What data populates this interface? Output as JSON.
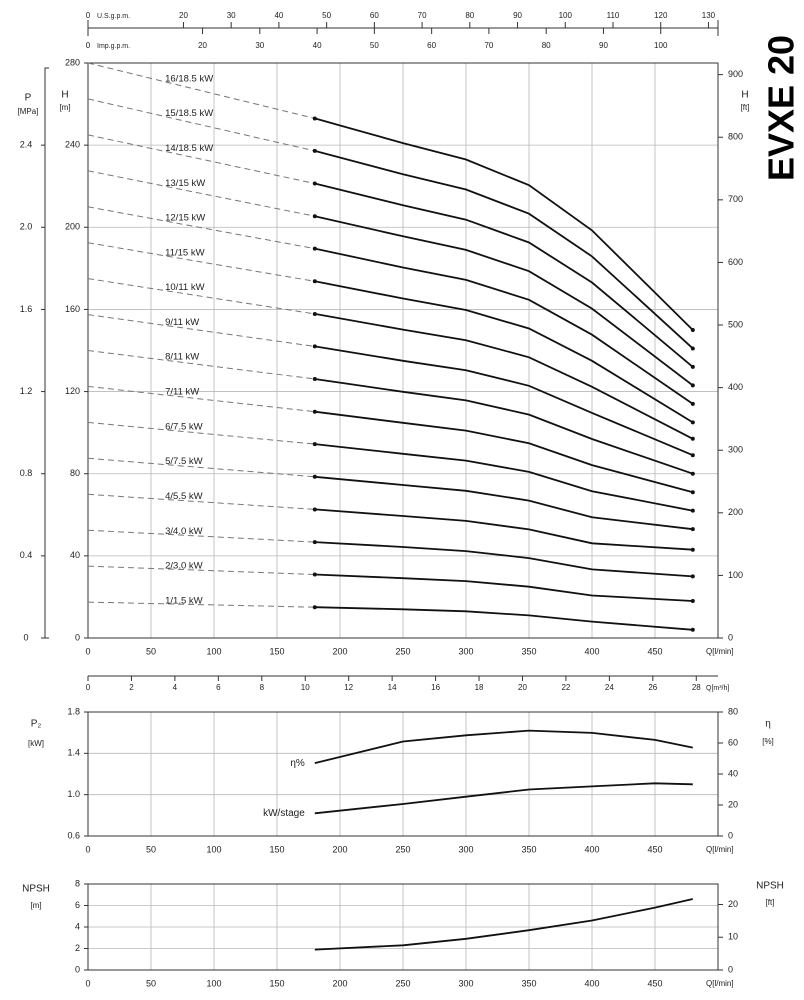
{
  "chart_data": [
    {
      "type": "line",
      "title": "EVXE 20",
      "x_label": "Q[l/min]",
      "xlim": [
        0,
        500
      ],
      "xticks": [
        0,
        50,
        100,
        150,
        200,
        250,
        300,
        350,
        400,
        450
      ],
      "y_label": "H",
      "y_unit": "[m]",
      "ylim": [
        0,
        280
      ],
      "yticks": [
        0,
        40,
        80,
        120,
        160,
        200,
        240,
        280
      ],
      "y2_label": "H",
      "y2_unit": "[ft]",
      "y2lim": [
        0,
        918.6
      ],
      "y2ticks": [
        0,
        100,
        200,
        300,
        400,
        500,
        600,
        700,
        800,
        900
      ],
      "pressure_axis": {
        "label": "P",
        "unit": "[MPa]",
        "lim": [
          0,
          2.8
        ],
        "ticks": [
          0,
          0.4,
          0.8,
          1.2,
          1.6,
          {
            "value": 2,
            "label": "2.0"
          },
          2.4
        ]
      },
      "flow_axes": [
        {
          "label": "Q[m³/h]",
          "lim": [
            0,
            29
          ],
          "ticks": [
            0,
            2,
            4,
            6,
            8,
            10,
            12,
            14,
            16,
            18,
            20,
            22,
            24,
            26,
            28
          ]
        },
        {
          "label": "U.S.g.p.m.",
          "lim": [
            0,
            132
          ],
          "ticks": [
            0,
            20,
            30,
            40,
            50,
            60,
            70,
            80,
            90,
            100,
            110,
            120,
            130
          ]
        },
        {
          "label": "Imp.g.p.m.",
          "lim": [
            0,
            110
          ],
          "ticks": [
            0,
            20,
            30,
            40,
            50,
            60,
            70,
            80,
            90,
            100
          ]
        }
      ],
      "grid": true,
      "color": "#111111",
      "dashed_below_x": 180,
      "end_markers": true,
      "x": [
        0,
        180,
        250,
        300,
        350,
        400,
        480
      ],
      "series": [
        {
          "name": "16/18.5 kW",
          "values": [
            280,
            253.0,
            241.0,
            233.0,
            220.5,
            198.5,
            150
          ]
        },
        {
          "name": "15/18.5 kW",
          "values": [
            262.5,
            237.2,
            225.8,
            218.4,
            206.6,
            185.8,
            141
          ]
        },
        {
          "name": "14/18.5 kW",
          "values": [
            245,
            221.3,
            210.7,
            203.7,
            192.6,
            173.1,
            132
          ]
        },
        {
          "name": "13/15 kW",
          "values": [
            227.5,
            205.4,
            195.6,
            189.0,
            178.6,
            160.4,
            123
          ]
        },
        {
          "name": "12/15 kW",
          "values": [
            210,
            189.6,
            180.4,
            174.4,
            164.7,
            147.7,
            114
          ]
        },
        {
          "name": "11/15 kW",
          "values": [
            192.5,
            173.7,
            165.3,
            159.7,
            150.7,
            135.0,
            105
          ]
        },
        {
          "name": "10/11 kW",
          "values": [
            175,
            157.8,
            150.2,
            145.0,
            136.7,
            122.3,
            97
          ]
        },
        {
          "name": "9/11 kW",
          "values": [
            157.5,
            142.0,
            135.0,
            130.4,
            122.8,
            109.6,
            89
          ]
        },
        {
          "name": "8/11 kW",
          "values": [
            140,
            126.1,
            119.9,
            115.7,
            108.8,
            96.9,
            80
          ]
        },
        {
          "name": "7/11 kW",
          "values": [
            122.5,
            110.2,
            104.8,
            101.0,
            94.8,
            84.2,
            71
          ]
        },
        {
          "name": "6/7.5 kW",
          "values": [
            105,
            94.4,
            89.7,
            86.4,
            80.9,
            71.5,
            62
          ]
        },
        {
          "name": "5/7.5 kW",
          "values": [
            87.5,
            78.5,
            74.5,
            71.7,
            66.9,
            58.8,
            53
          ]
        },
        {
          "name": "4/5.5 kW",
          "values": [
            70,
            62.6,
            59.4,
            57.0,
            52.9,
            46.1,
            43
          ]
        },
        {
          "name": "3/4.0 kW",
          "values": [
            52.5,
            46.7,
            44.3,
            42.3,
            38.9,
            33.4,
            30
          ]
        },
        {
          "name": "2/3.0 kW",
          "values": [
            35,
            30.9,
            29.1,
            27.7,
            25.0,
            20.7,
            18
          ]
        },
        {
          "name": "1/1.5 kW",
          "values": [
            17.5,
            15.0,
            14.0,
            13.0,
            11.0,
            8.0,
            4
          ]
        }
      ]
    },
    {
      "type": "line",
      "x_label": "Q[l/min]",
      "xlim": [
        0,
        500
      ],
      "xticks": [
        0,
        50,
        100,
        150,
        200,
        250,
        300,
        350,
        400,
        450
      ],
      "y_label": "P₂",
      "y_unit": "[kW]",
      "ylim": [
        0.6,
        1.8
      ],
      "yticks": [
        0.6,
        {
          "value": 1,
          "label": "1.0"
        },
        1.4,
        1.8
      ],
      "y2_label": "η",
      "y2_unit": "[%]",
      "y2lim": [
        0,
        80
      ],
      "y2ticks": [
        0,
        20,
        40,
        60,
        80
      ],
      "grid": true,
      "color": "#111111",
      "x": [
        180,
        250,
        300,
        350,
        400,
        450,
        480
      ],
      "series": [
        {
          "name": "η%",
          "axis": "y2",
          "values": [
            47,
            61,
            65,
            68,
            66.5,
            62,
            57
          ]
        },
        {
          "name": "kW/stage",
          "values": [
            0.82,
            0.91,
            0.98,
            1.05,
            1.08,
            1.11,
            1.1
          ]
        }
      ]
    },
    {
      "type": "line",
      "x_label": "Q[l/min]",
      "xlim": [
        0,
        500
      ],
      "xticks": [
        0,
        50,
        100,
        150,
        200,
        250,
        300,
        350,
        400,
        450
      ],
      "y_label": "NPSH",
      "y_unit": "[m]",
      "ylim": [
        0,
        8
      ],
      "yticks": [
        0,
        2,
        4,
        6,
        8
      ],
      "y2_label": "NPSH",
      "y2_unit": "[ft]",
      "y2lim": [
        0,
        26.25
      ],
      "y2ticks": [
        0,
        10,
        20
      ],
      "grid": true,
      "color": "#111111",
      "x": [
        180,
        250,
        300,
        350,
        400,
        450,
        480
      ],
      "values": [
        1.9,
        2.3,
        2.9,
        3.7,
        4.6,
        5.8,
        6.6
      ]
    }
  ]
}
